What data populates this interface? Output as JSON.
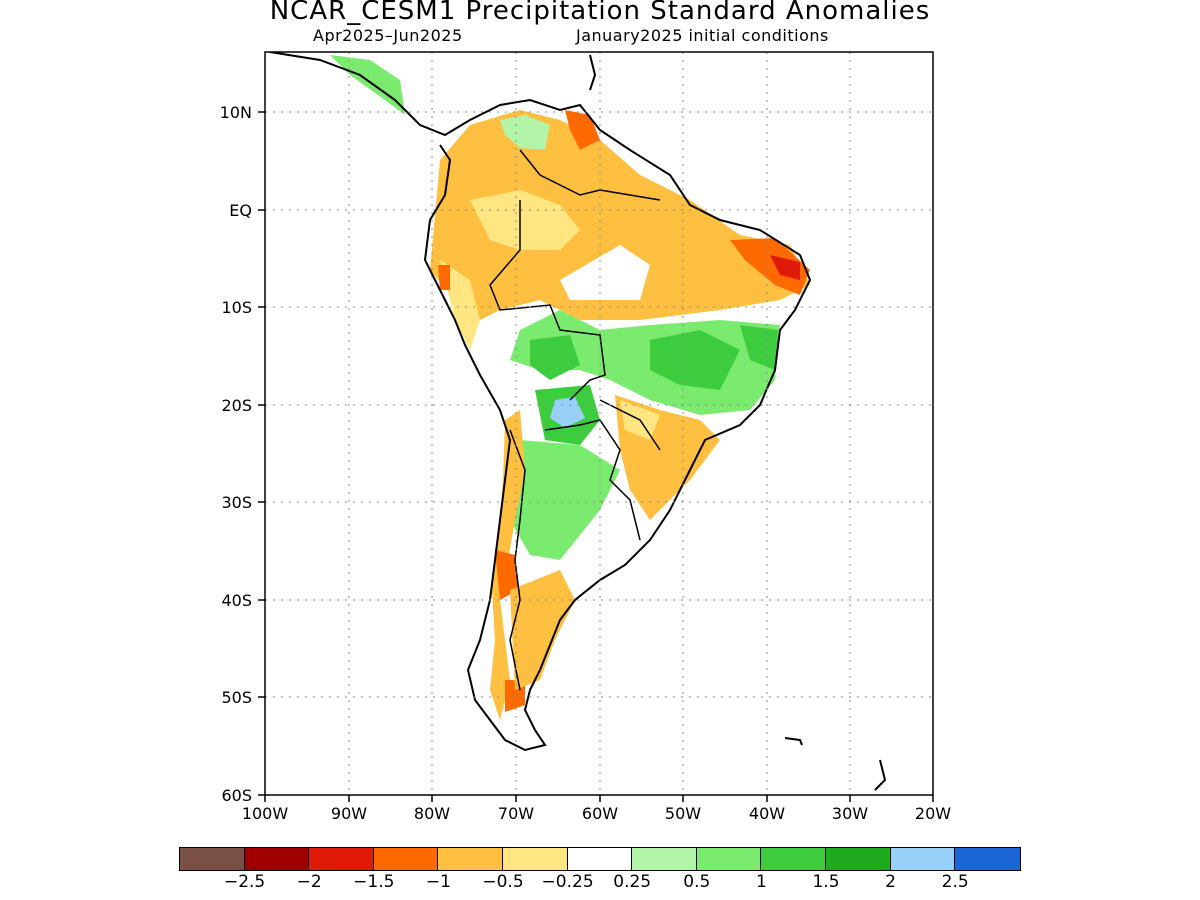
{
  "title": "NCAR_CESM1 Precipitation Standard Anomalies",
  "subtitle_left": "Apr2025–Jun2025",
  "subtitle_right": "January2025 initial conditions",
  "axes": {
    "lat_labels": [
      "10N",
      "EQ",
      "10S",
      "20S",
      "30S",
      "40S",
      "50S",
      "60S"
    ],
    "lon_labels": [
      "100W",
      "90W",
      "80W",
      "70W",
      "60W",
      "50W",
      "40W",
      "30W",
      "20W"
    ]
  },
  "colorbar": {
    "colors": [
      "#7a5046",
      "#a10000",
      "#e01a08",
      "#ff6a00",
      "#ffbf40",
      "#ffe680",
      "#ffffff",
      "#b3f5a8",
      "#7aeb6e",
      "#3dcc3d",
      "#1faa1f",
      "#99d0f7",
      "#1a66d6"
    ],
    "labels": [
      "−2.5",
      "−2",
      "−1.5",
      "−1",
      "−0.5",
      "−0.25",
      "0.25",
      "0.5",
      "1",
      "1.5",
      "2",
      "2.5"
    ]
  },
  "legend_colors": {
    "dry_moderate": "#ffbf40",
    "dry_strong": "#ff6a00",
    "wet_moderate": "#7aeb6e",
    "wet_strong": "#3dcc3d",
    "wet_extreme": "#99d0f7"
  }
}
